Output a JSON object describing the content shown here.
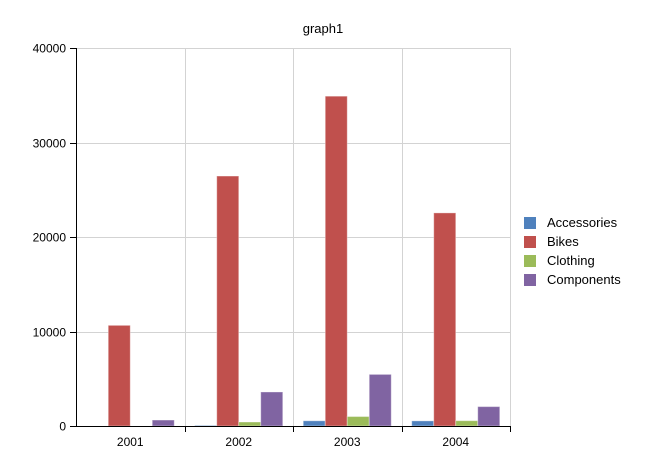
{
  "chart_data": {
    "type": "bar",
    "title": "graph1",
    "xlabel": "",
    "ylabel": "",
    "categories": [
      "2001",
      "2002",
      "2003",
      "2004"
    ],
    "series": [
      {
        "name": "Accessories",
        "color": "#4f81bd",
        "values": [
          0,
          50,
          550,
          540
        ]
      },
      {
        "name": "Bikes",
        "color": "#c0504d",
        "values": [
          10650,
          26450,
          34900,
          22550
        ]
      },
      {
        "name": "Clothing",
        "color": "#9bbb59",
        "values": [
          0,
          420,
          1000,
          560
        ]
      },
      {
        "name": "Components",
        "color": "#8064a2",
        "values": [
          630,
          3600,
          5460,
          2050
        ]
      }
    ],
    "ylim": [
      0,
      40000
    ],
    "yticks": [
      "0",
      "10000",
      "20000",
      "30000",
      "40000"
    ],
    "grid": true,
    "legend_position": "right"
  }
}
